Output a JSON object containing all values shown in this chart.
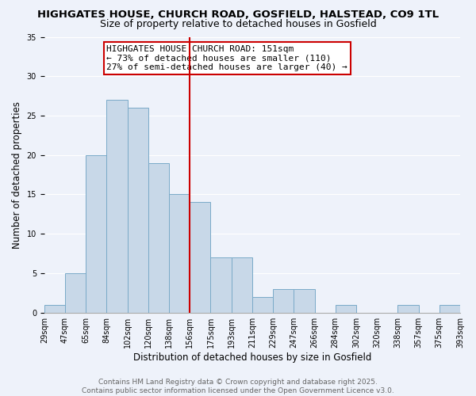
{
  "title": "HIGHGATES HOUSE, CHURCH ROAD, GOSFIELD, HALSTEAD, CO9 1TL",
  "subtitle": "Size of property relative to detached houses in Gosfield",
  "xlabel": "Distribution of detached houses by size in Gosfield",
  "ylabel": "Number of detached properties",
  "bar_values": [
    1,
    5,
    20,
    27,
    26,
    19,
    15,
    14,
    7,
    7,
    2,
    3,
    3,
    0,
    1,
    0,
    0,
    1,
    0,
    1
  ],
  "bin_labels": [
    "29sqm",
    "47sqm",
    "65sqm",
    "84sqm",
    "102sqm",
    "120sqm",
    "138sqm",
    "156sqm",
    "175sqm",
    "193sqm",
    "211sqm",
    "229sqm",
    "247sqm",
    "266sqm",
    "284sqm",
    "302sqm",
    "320sqm",
    "338sqm",
    "357sqm",
    "375sqm",
    "393sqm"
  ],
  "bar_color": "#c8d8e8",
  "bar_edge_color": "#7aaac8",
  "vline_color": "#cc0000",
  "vline_position": 6.5,
  "annotation_text": "HIGHGATES HOUSE CHURCH ROAD: 151sqm\n← 73% of detached houses are smaller (110)\n27% of semi-detached houses are larger (40) →",
  "annotation_box_color": "#ffffff",
  "annotation_box_edge": "#cc0000",
  "ylim": [
    0,
    35
  ],
  "yticks": [
    0,
    5,
    10,
    15,
    20,
    25,
    30,
    35
  ],
  "footer_line1": "Contains HM Land Registry data © Crown copyright and database right 2025.",
  "footer_line2": "Contains public sector information licensed under the Open Government Licence v3.0.",
  "bg_color": "#eef2fa",
  "grid_color": "#ffffff",
  "title_fontsize": 9.5,
  "subtitle_fontsize": 9,
  "axis_label_fontsize": 8.5,
  "tick_fontsize": 7,
  "annotation_fontsize": 8,
  "footer_fontsize": 6.5
}
